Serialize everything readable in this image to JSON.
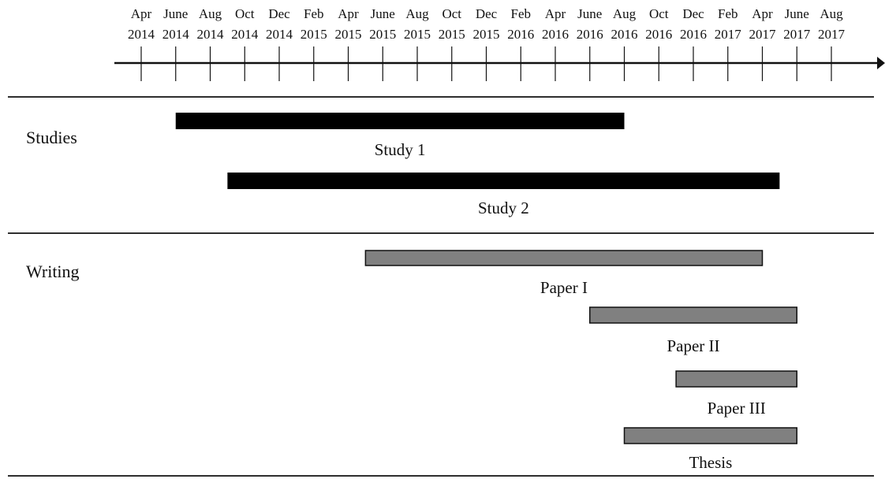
{
  "chart_data": {
    "type": "gantt",
    "timeline": {
      "ticks": [
        {
          "month": "Apr",
          "year": "2014"
        },
        {
          "month": "June",
          "year": "2014"
        },
        {
          "month": "Aug",
          "year": "2014"
        },
        {
          "month": "Oct",
          "year": "2014"
        },
        {
          "month": "Dec",
          "year": "2014"
        },
        {
          "month": "Feb",
          "year": "2015"
        },
        {
          "month": "Apr",
          "year": "2015"
        },
        {
          "month": "June",
          "year": "2015"
        },
        {
          "month": "Aug",
          "year": "2015"
        },
        {
          "month": "Oct",
          "year": "2015"
        },
        {
          "month": "Dec",
          "year": "2015"
        },
        {
          "month": "Feb",
          "year": "2016"
        },
        {
          "month": "Apr",
          "year": "2016"
        },
        {
          "month": "June",
          "year": "2016"
        },
        {
          "month": "Aug",
          "year": "2016"
        },
        {
          "month": "Oct",
          "year": "2016"
        },
        {
          "month": "Dec",
          "year": "2016"
        },
        {
          "month": "Feb",
          "year": "2017"
        },
        {
          "month": "Apr",
          "year": "2017"
        },
        {
          "month": "June",
          "year": "2017"
        },
        {
          "month": "Aug",
          "year": "2017"
        }
      ]
    },
    "sections": [
      {
        "label": "Studies",
        "bars": [
          {
            "label": "Study 1",
            "start": "2014-06",
            "end": "2016-08",
            "fill": "#000000"
          },
          {
            "label": "Study 2",
            "start": "2014-09",
            "end": "2017-05",
            "fill": "#000000"
          }
        ]
      },
      {
        "label": "Writing",
        "bars": [
          {
            "label": "Paper I",
            "start": "2015-05",
            "end": "2017-04",
            "fill": "#808080"
          },
          {
            "label": "Paper II",
            "start": "2016-06",
            "end": "2017-06",
            "fill": "#808080"
          },
          {
            "label": "Paper III",
            "start": "2016-11",
            "end": "2017-06",
            "fill": "#808080"
          },
          {
            "label": "Thesis",
            "start": "2016-08",
            "end": "2017-06",
            "fill": "#808080"
          }
        ]
      }
    ]
  }
}
